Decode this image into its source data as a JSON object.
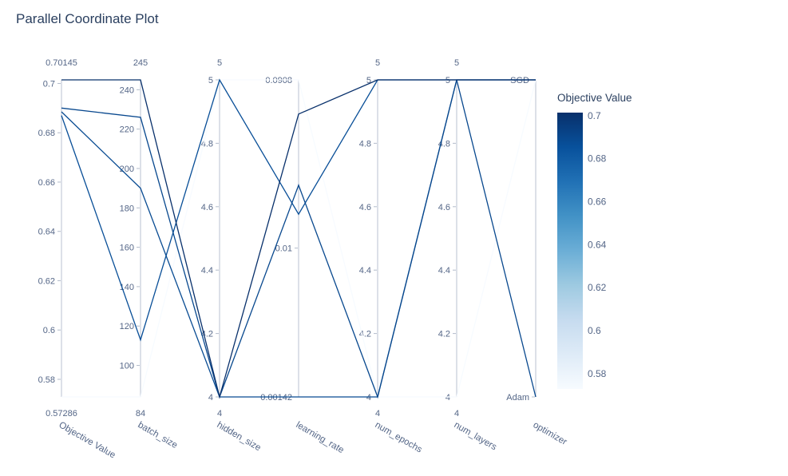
{
  "title": "Parallel Coordinate Plot",
  "chart_data": {
    "type": "parallel_coordinates",
    "axes": [
      {
        "name": "Objective Value",
        "scale": "linear",
        "min": 0.57286,
        "max": 0.70145,
        "top_label": "0.70145",
        "bottom_label": "0.57286",
        "ticks": [
          {
            "v": 0.7,
            "label": "0.7"
          },
          {
            "v": 0.68,
            "label": "0.68"
          },
          {
            "v": 0.66,
            "label": "0.66"
          },
          {
            "v": 0.64,
            "label": "0.64"
          },
          {
            "v": 0.62,
            "label": "0.62"
          },
          {
            "v": 0.6,
            "label": "0.6"
          },
          {
            "v": 0.58,
            "label": "0.58"
          }
        ]
      },
      {
        "name": "batch_size",
        "scale": "linear",
        "min": 84,
        "max": 245,
        "top_label": "245",
        "bottom_label": "84",
        "ticks": [
          {
            "v": 240,
            "label": "240"
          },
          {
            "v": 220,
            "label": "220"
          },
          {
            "v": 200,
            "label": "200"
          },
          {
            "v": 180,
            "label": "180"
          },
          {
            "v": 160,
            "label": "160"
          },
          {
            "v": 140,
            "label": "140"
          },
          {
            "v": 120,
            "label": "120"
          },
          {
            "v": 100,
            "label": "100"
          }
        ]
      },
      {
        "name": "hidden_size",
        "scale": "linear",
        "min": 4,
        "max": 5,
        "top_label": "5",
        "bottom_label": "4",
        "ticks": [
          {
            "v": 5,
            "label": "5"
          },
          {
            "v": 4.8,
            "label": "4.8"
          },
          {
            "v": 4.6,
            "label": "4.6"
          },
          {
            "v": 4.4,
            "label": "4.4"
          },
          {
            "v": 4.2,
            "label": "4.2"
          },
          {
            "v": 4,
            "label": "4"
          }
        ]
      },
      {
        "name": "learning_rate",
        "scale": "log",
        "min": 0.00142,
        "max": 0.0908,
        "top_label": "",
        "bottom_label": "",
        "ticks": [
          {
            "v": 0.0908,
            "label": "0.0908"
          },
          {
            "v": 0.01,
            "label": "0.01"
          },
          {
            "v": 0.00142,
            "label": "0.00142"
          }
        ]
      },
      {
        "name": "num_epochs",
        "scale": "linear",
        "min": 4,
        "max": 5,
        "top_label": "5",
        "bottom_label": "4",
        "ticks": [
          {
            "v": 5,
            "label": "5"
          },
          {
            "v": 4.8,
            "label": "4.8"
          },
          {
            "v": 4.6,
            "label": "4.6"
          },
          {
            "v": 4.4,
            "label": "4.4"
          },
          {
            "v": 4.2,
            "label": "4.2"
          },
          {
            "v": 4,
            "label": "4"
          }
        ]
      },
      {
        "name": "num_layers",
        "scale": "linear",
        "min": 4,
        "max": 5,
        "top_label": "5",
        "bottom_label": "4",
        "ticks": [
          {
            "v": 5,
            "label": "5"
          },
          {
            "v": 4.8,
            "label": "4.8"
          },
          {
            "v": 4.6,
            "label": "4.6"
          },
          {
            "v": 4.4,
            "label": "4.4"
          },
          {
            "v": 4.2,
            "label": "4.2"
          },
          {
            "v": 4,
            "label": "4"
          }
        ]
      },
      {
        "name": "optimizer",
        "scale": "category",
        "categories": [
          "SGD",
          "Adam"
        ],
        "top_label": "",
        "bottom_label": "",
        "ticks": [
          {
            "v": "SGD",
            "label": "SGD"
          },
          {
            "v": "Adam",
            "label": "Adam"
          }
        ]
      }
    ],
    "trials": [
      {
        "objective": 0.57286,
        "batch_size": 84,
        "hidden_size": 5,
        "learning_rate": 0.0908,
        "num_epochs": 4,
        "num_layers": 4,
        "optimizer": "SGD"
      },
      {
        "objective": 0.687,
        "batch_size": 113,
        "hidden_size": 5,
        "learning_rate": 0.0156,
        "num_epochs": 5,
        "num_layers": 5,
        "optimizer": "SGD"
      },
      {
        "objective": 0.6885,
        "batch_size": 190,
        "hidden_size": 4,
        "learning_rate": 0.00142,
        "num_epochs": 4,
        "num_layers": 5,
        "optimizer": "SGD"
      },
      {
        "objective": 0.69,
        "batch_size": 226,
        "hidden_size": 4,
        "learning_rate": 0.0228,
        "num_epochs": 4,
        "num_layers": 5,
        "optimizer": "Adam"
      },
      {
        "objective": 0.70145,
        "batch_size": 245,
        "hidden_size": 4,
        "learning_rate": 0.058,
        "num_epochs": 5,
        "num_layers": 5,
        "optimizer": "SGD"
      }
    ],
    "colorbar": {
      "title": "Objective Value",
      "min": 0.57286,
      "max": 0.70145,
      "colormap": "Blues",
      "ticks": [
        {
          "v": 0.7,
          "label": "0.7"
        },
        {
          "v": 0.68,
          "label": "0.68"
        },
        {
          "v": 0.66,
          "label": "0.66"
        },
        {
          "v": 0.64,
          "label": "0.64"
        },
        {
          "v": 0.62,
          "label": "0.62"
        },
        {
          "v": 0.6,
          "label": "0.6"
        },
        {
          "v": 0.58,
          "label": "0.58"
        }
      ]
    },
    "colors": {
      "axis_line": "#cdd3de",
      "tick_dash": "#b3bccb",
      "tick_text": "#546687",
      "title_text": "#2a3f5f"
    }
  }
}
